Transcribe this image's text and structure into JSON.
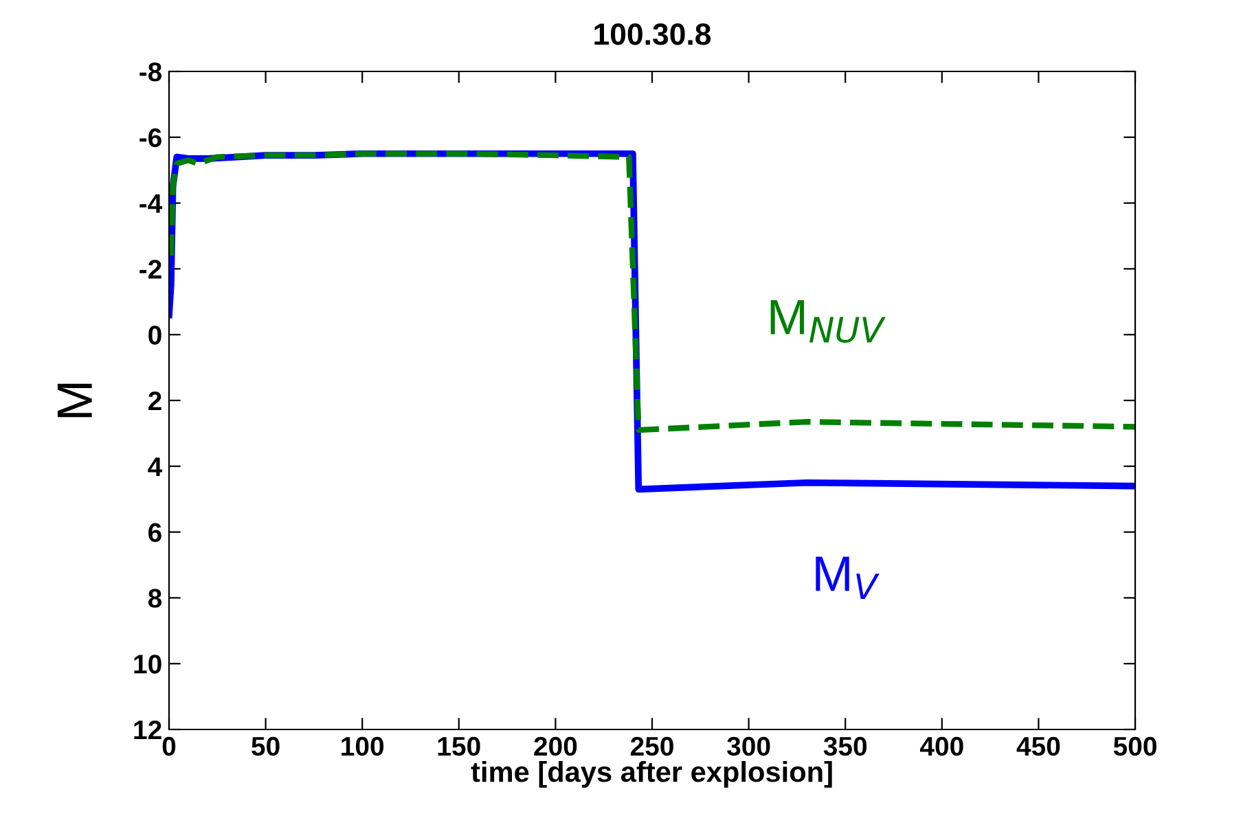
{
  "chart_data": {
    "type": "line",
    "title": "100.30.8",
    "xlabel": "time [days after explosion]",
    "ylabel": "M",
    "series": [
      {
        "name": "M$_{V}$",
        "color": "#0000ff",
        "line_style": "solid",
        "x": [
          0,
          1,
          2,
          4,
          10,
          20,
          35,
          50,
          75,
          100,
          150,
          200,
          240,
          243,
          330,
          500
        ],
        "values": [
          -0.6,
          -1.5,
          -4.5,
          -5.4,
          -5.35,
          -5.35,
          -5.4,
          -5.45,
          -5.45,
          -5.5,
          -5.5,
          -5.5,
          -5.5,
          4.7,
          4.5,
          4.6
        ]
      },
      {
        "name": "M$_{NUV}$",
        "color": "#008000",
        "line_style": "dashed",
        "x": [
          1,
          2,
          4,
          10,
          15,
          25,
          50,
          75,
          100,
          150,
          200,
          238,
          243,
          330,
          500
        ],
        "values": [
          -2.4,
          -4.5,
          -5.2,
          -5.3,
          -5.2,
          -5.4,
          -5.45,
          -5.45,
          -5.5,
          -5.5,
          -5.45,
          -5.4,
          2.9,
          2.65,
          2.8
        ]
      }
    ],
    "xlim": [
      0,
      500
    ],
    "xticks": [
      0,
      50,
      100,
      150,
      200,
      250,
      300,
      350,
      400,
      450,
      500
    ],
    "ylim": [
      12,
      -8
    ],
    "yticks": [
      -8,
      -6,
      -4,
      -2,
      0,
      2,
      4,
      6,
      8,
      10,
      12
    ],
    "grid": false,
    "legend": false
  }
}
